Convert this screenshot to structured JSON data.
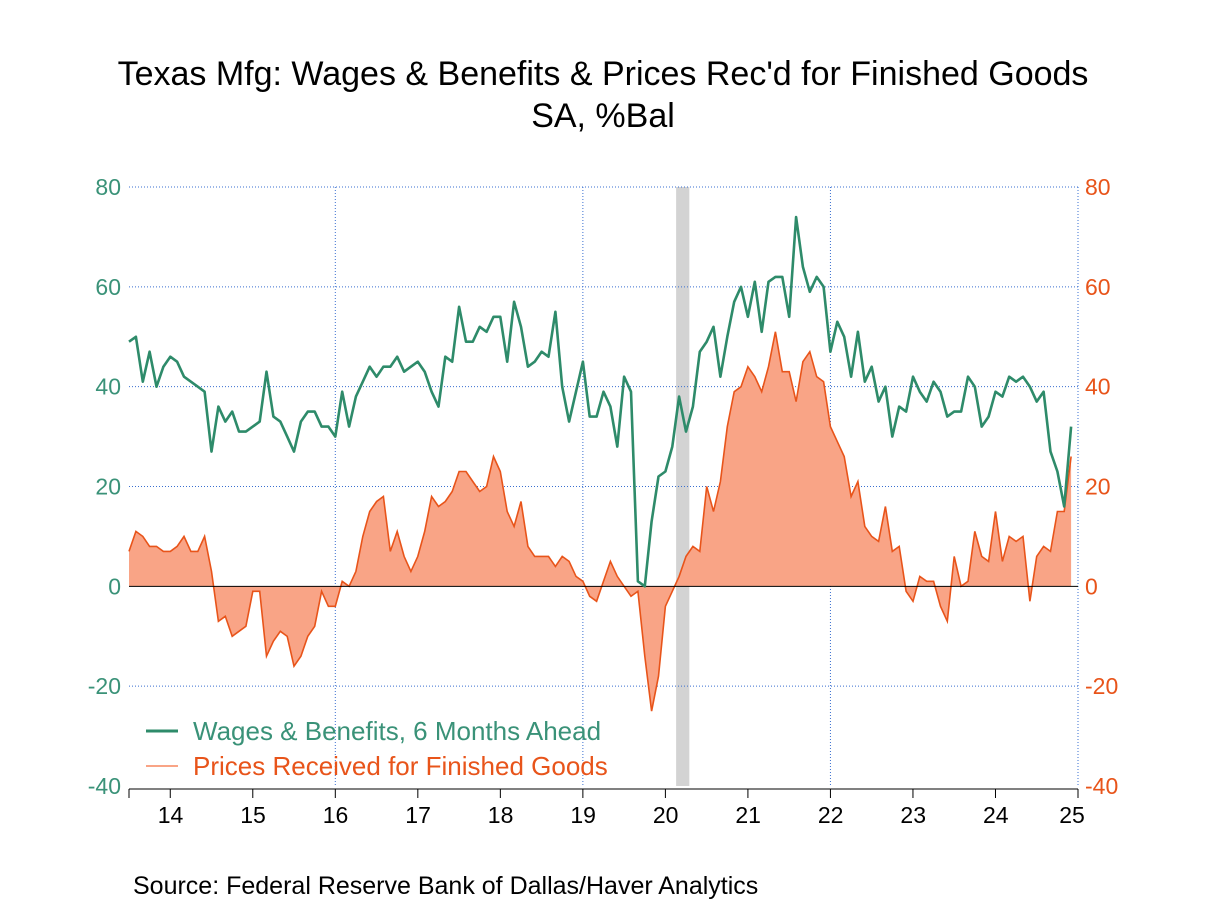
{
  "chart_data": {
    "type": "line",
    "title": "Texas Mfg: Wages & Benefits & Prices Rec'd for Finished Goods",
    "subtitle": "SA, %Bal",
    "source": "Source:  Federal Reserve Bank of Dallas/Haver Analytics",
    "x_tick_labels": [
      "14",
      "15",
      "16",
      "17",
      "18",
      "19",
      "20",
      "21",
      "22",
      "23",
      "24",
      "25"
    ],
    "x_range": [
      2013.5,
      2025.0
    ],
    "y_left": {
      "range": [
        -40,
        80
      ],
      "ticks": [
        "80",
        "60",
        "40",
        "20",
        "0",
        "-20",
        "-40"
      ],
      "color": "#3A9278"
    },
    "y_right": {
      "range": [
        -40,
        80
      ],
      "ticks": [
        "80",
        "60",
        "40",
        "20",
        "0",
        "-20",
        "-40"
      ],
      "color": "#E8541A"
    },
    "grid": "dotted-blue",
    "recession_shade": {
      "start": 2020.13,
      "end": 2020.29,
      "color": "#D3D3D3"
    },
    "legend_placement": "bottom-left",
    "series": [
      {
        "name": "Wages & Benefits, 6 Months Ahead",
        "type": "line",
        "axis": "left",
        "color": "#2E8B6A",
        "start": 2013.5,
        "step_months": 1,
        "values": [
          49,
          50,
          41,
          47,
          40,
          44,
          46,
          45,
          42,
          41,
          40,
          39,
          27,
          36,
          33,
          35,
          31,
          31,
          32,
          33,
          43,
          34,
          33,
          30,
          27,
          33,
          35,
          35,
          32,
          32,
          30,
          39,
          32,
          38,
          41,
          44,
          42,
          44,
          44,
          46,
          43,
          44,
          45,
          43,
          39,
          36,
          46,
          45,
          56,
          49,
          49,
          52,
          51,
          54,
          54,
          45,
          57,
          52,
          44,
          45,
          47,
          46,
          55,
          40,
          33,
          39,
          45,
          34,
          34,
          39,
          36,
          28,
          42,
          39,
          1,
          0,
          13,
          22,
          23,
          28,
          38,
          31,
          36,
          47,
          49,
          52,
          42,
          50,
          57,
          60,
          54,
          61,
          51,
          61,
          62,
          62,
          54,
          74,
          64,
          59,
          62,
          60,
          47,
          53,
          50,
          42,
          51,
          41,
          44,
          37,
          40,
          30,
          36,
          35,
          42,
          39,
          37,
          41,
          39,
          34,
          35,
          35,
          42,
          40,
          32,
          34,
          39,
          38,
          42,
          41,
          42,
          40,
          37,
          39,
          27,
          23,
          16,
          32
        ]
      },
      {
        "name": "Prices Received for Finished Goods",
        "type": "area",
        "axis": "right",
        "color": "#E8541A",
        "fill": "#F9A486",
        "start": 2013.5,
        "step_months": 1,
        "values": [
          7,
          11,
          10,
          8,
          8,
          7,
          7,
          8,
          10,
          7,
          7,
          10,
          3,
          -7,
          -6,
          -10,
          -9,
          -8,
          -1,
          -1,
          -14,
          -11,
          -9,
          -10,
          -16,
          -14,
          -10,
          -8,
          -1,
          -4,
          -4,
          1,
          0,
          3,
          10,
          15,
          17,
          18,
          7,
          11,
          6,
          3,
          6,
          11,
          18,
          16,
          17,
          19,
          23,
          23,
          21,
          19,
          20,
          26,
          23,
          15,
          12,
          17,
          8,
          6,
          6,
          6,
          4,
          6,
          5,
          2,
          1,
          -2,
          -3,
          1,
          5,
          2,
          0,
          -2,
          -1,
          -14,
          -25,
          -18,
          -4,
          -1,
          2,
          6,
          8,
          7,
          20,
          15,
          21,
          32,
          39,
          40,
          44,
          42,
          39,
          44,
          51,
          43,
          43,
          37,
          45,
          47,
          42,
          41,
          32,
          29,
          26,
          18,
          21,
          12,
          10,
          9,
          16,
          7,
          8,
          -1,
          -3,
          2,
          1,
          1,
          -4,
          -7,
          6,
          0,
          1,
          11,
          6,
          5,
          15,
          5,
          10,
          9,
          10,
          -3,
          6,
          8,
          7,
          15,
          15,
          26
        ]
      }
    ]
  }
}
